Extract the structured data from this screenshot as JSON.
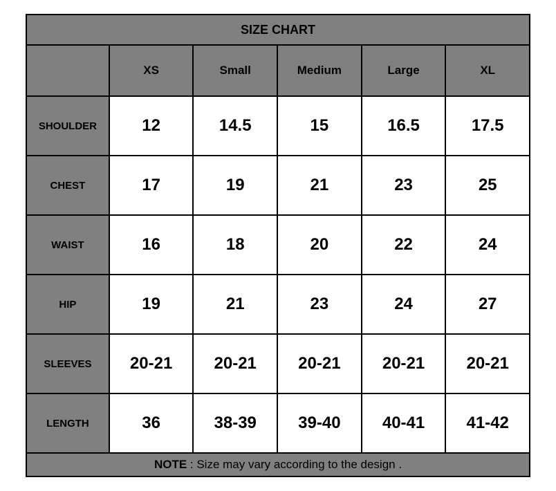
{
  "type": "table",
  "title": "SIZE CHART",
  "background_color": "#ffffff",
  "header_bg": "#808080",
  "cell_bg": "#ffffff",
  "border_color": "#000000",
  "border_width": 2,
  "title_fontsize": 18,
  "size_header_fontsize": 17,
  "row_label_fontsize": 15,
  "value_fontsize": 24,
  "note_fontsize": 17,
  "columns": [
    "XS",
    "Small",
    "Medium",
    "Large",
    "XL"
  ],
  "rows": [
    {
      "label": "SHOULDER",
      "values": [
        "12",
        "14.5",
        "15",
        "16.5",
        "17.5"
      ]
    },
    {
      "label": "CHEST",
      "values": [
        "17",
        "19",
        "21",
        "23",
        "25"
      ]
    },
    {
      "label": "WAIST",
      "values": [
        "16",
        "18",
        "20",
        "22",
        "24"
      ]
    },
    {
      "label": "HIP",
      "values": [
        "19",
        "21",
        "23",
        "24",
        "27"
      ]
    },
    {
      "label": "SLEEVES",
      "values": [
        "20-21",
        "20-21",
        "20-21",
        "20-21",
        "20-21"
      ]
    },
    {
      "label": "LENGTH",
      "values": [
        "36",
        "38-39",
        "39-40",
        "40-41",
        "41-42"
      ]
    }
  ],
  "note_label": "NOTE",
  "note_text": " : Size may vary according to the design ."
}
